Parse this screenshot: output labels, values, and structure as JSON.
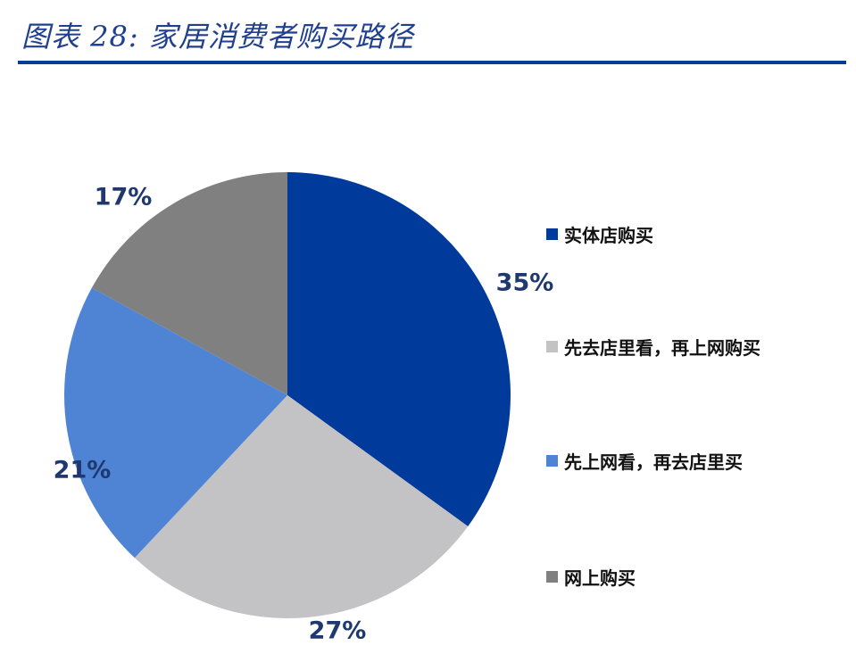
{
  "header": {
    "title": "图表 28:  家居消费者购买路径"
  },
  "colors": {
    "rule": "#0a3b98",
    "label_text": "#1f3870"
  },
  "chart_data": {
    "type": "pie",
    "start_angle_deg": 0,
    "direction": "clockwise",
    "legend_position": "right",
    "slices": [
      {
        "label": "实体店购买",
        "value": 35,
        "display": "35%",
        "color": "#003a9b"
      },
      {
        "label": "先去店里看，再上网购买",
        "value": 27,
        "display": "27%",
        "color": "#c3c3c6"
      },
      {
        "label": "先上网看，再去店里买",
        "value": 21,
        "display": "21%",
        "color": "#4f84d4"
      },
      {
        "label": "网上购买",
        "value": 17,
        "display": "17%",
        "color": "#808080"
      }
    ]
  }
}
